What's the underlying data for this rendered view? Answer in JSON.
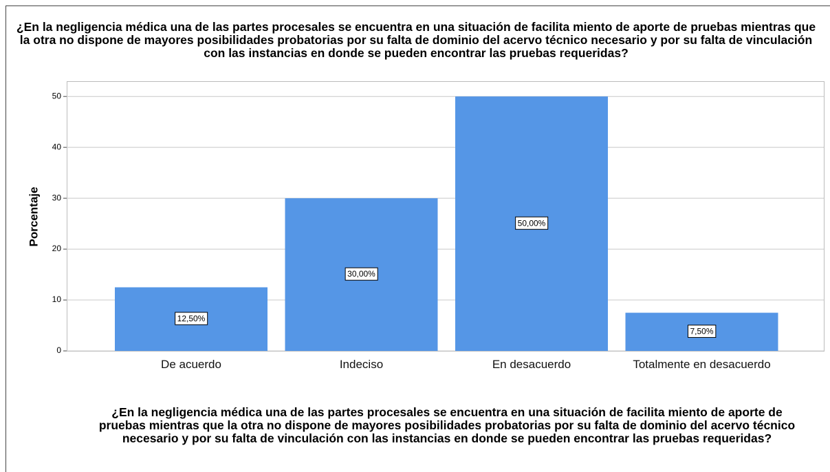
{
  "chart_data": {
    "type": "bar",
    "title": "¿En la negligencia médica una de las partes procesales se encuentra en una situación de facilita miento de aporte de pruebas mientras que la otra no dispone de mayores posibilidades probatorias por su falta de dominio del acervo técnico necesario y por su falta de vinculación con las instancias en donde se pueden encontrar las pruebas requeridas?",
    "x_label": "¿En la negligencia médica una de las partes procesales se encuentra en una situación de facilita miento de aporte de pruebas mientras que la otra no dispone de mayores posibilidades probatorias por su falta de dominio del acervo técnico necesario y por su falta de vinculación con las instancias en donde se pueden encontrar las pruebas requeridas?",
    "y_label": "Porcentaje",
    "categories": [
      "De acuerdo",
      "Indeciso",
      "En desacuerdo",
      "Totalmente en desacuerdo"
    ],
    "values": [
      12.5,
      30,
      50,
      7.5
    ],
    "value_labels": [
      "12,50%",
      "30,00%",
      "50,00%",
      "7,50%"
    ],
    "color": "#5596e6",
    "ylim": [
      0,
      53
    ],
    "yticks": [
      0,
      10,
      20,
      30,
      40,
      50
    ],
    "grid": true
  }
}
